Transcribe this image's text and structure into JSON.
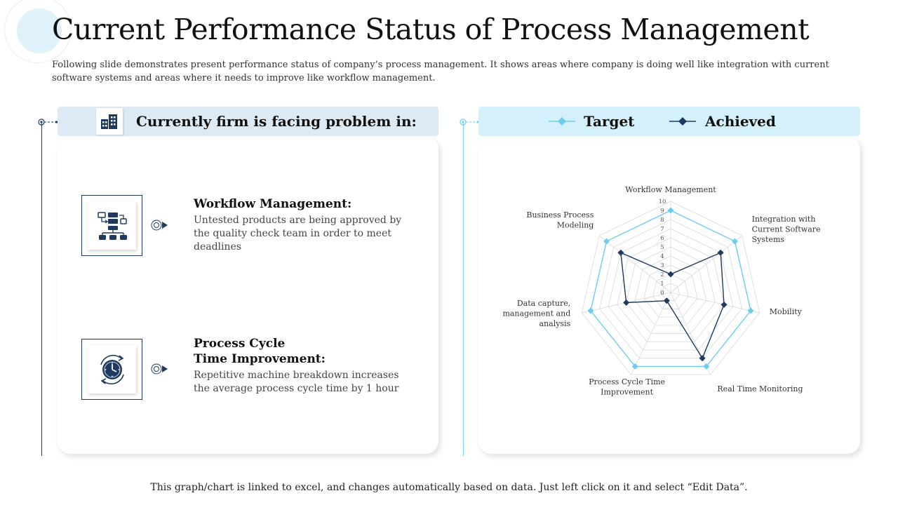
{
  "title": "Current Performance Status of Process Management",
  "subtitle": "Following slide demonstrates present performance status of company’s process management. It shows areas where company is doing well like integration with current software systems and areas where it needs to improve like workflow management.",
  "left_panel": {
    "header": "Currently firm is facing problem in:",
    "header_icon": "building-icon",
    "items": [
      {
        "title": "Workflow Management:",
        "description": "Untested products are being approved by the quality check team in order to meet deadlines",
        "icon": "workflow-icon"
      },
      {
        "title_line1": "Process Cycle",
        "title_line2": "Time Improvement:",
        "description": "Repetitive machine breakdown increases the average process cycle time by 1 hour",
        "icon": "clock-icon"
      }
    ]
  },
  "colors": {
    "target": "#6ccdf0",
    "achieved": "#1f3a5f",
    "grid": "#d9d9d9"
  },
  "chart_data": {
    "type": "radar",
    "categories": [
      "Workflow Management",
      "Integration with Current Software Systems",
      "Mobility",
      "Real Time Monitoring",
      "Process Cycle Time Improvement",
      "Data capture, management and analysis",
      "Business Process Modeling"
    ],
    "category_label_lines": [
      [
        "Workflow Management"
      ],
      [
        "Integration with",
        "Current Software",
        "Systems"
      ],
      [
        "Mobility"
      ],
      [
        "Real Time Monitoring"
      ],
      [
        "Process Cycle Time",
        "Improvement"
      ],
      [
        "Data capture,",
        "management and",
        "analysis"
      ],
      [
        "Business Process",
        "Modeling"
      ]
    ],
    "series": [
      {
        "name": "Target",
        "values": [
          9,
          9,
          9,
          9,
          9,
          9,
          9
        ]
      },
      {
        "name": "Achieved",
        "values": [
          2,
          7,
          6,
          8,
          1,
          5,
          7
        ]
      }
    ],
    "rlim": [
      0,
      10
    ],
    "ticks": [
      0,
      1,
      2,
      3,
      4,
      5,
      6,
      7,
      8,
      9,
      10
    ],
    "legend": "top"
  },
  "footer": "This graph/chart is linked to excel, and changes automatically based on data. Just left click on it and select “Edit Data”."
}
